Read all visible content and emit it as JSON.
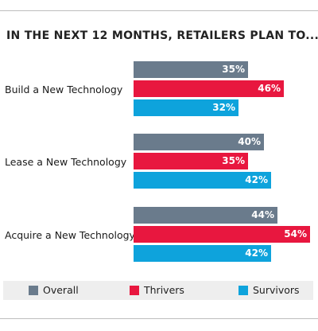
{
  "chart_data": {
    "type": "bar",
    "orientation": "horizontal",
    "title": "IN THE NEXT 12 MONTHS, RETAILERS PLAN TO...",
    "categories": [
      "Build a New Technology",
      "Lease a New Technology",
      "Acquire a New Technology"
    ],
    "series": [
      {
        "name": "Overall",
        "color": "#6a7b8c",
        "values": [
          35,
          40,
          44
        ],
        "labels": [
          "35%",
          "40%",
          "44%"
        ]
      },
      {
        "name": "Thrivers",
        "color": "#e8173f",
        "values": [
          46,
          35,
          54
        ],
        "labels": [
          "46%",
          "35%",
          "54%"
        ]
      },
      {
        "name": "Survivors",
        "color": "#0ea3dc",
        "values": [
          32,
          42,
          42
        ],
        "labels": [
          "32%",
          "42%",
          "42%"
        ]
      }
    ],
    "xlim": [
      0,
      54
    ],
    "legend": "bottom",
    "grid": false
  }
}
